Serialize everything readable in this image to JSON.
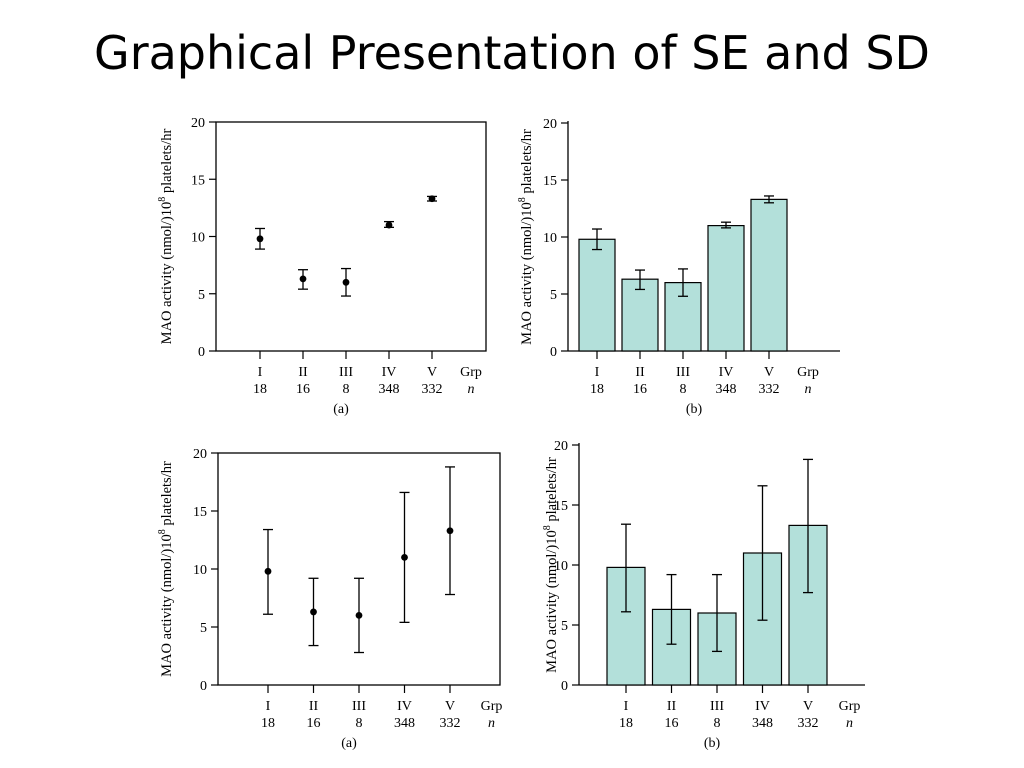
{
  "slide": {
    "title": "Graphical Presentation of SE and SD"
  },
  "chart_data": [
    {
      "type": "scatter",
      "caption": "(a)",
      "ylabel_main": "MAO activity (nmol/)10",
      "ylabel_sup": "8",
      "ylabel_tail": " platelets/hr",
      "categories": [
        "I",
        "II",
        "III",
        "IV",
        "V"
      ],
      "n": [
        "18",
        "16",
        "8",
        "348",
        "332"
      ],
      "grp_label": "Grp",
      "n_label": "n",
      "values": [
        9.8,
        6.3,
        6.0,
        11.0,
        13.3
      ],
      "err_low": [
        8.9,
        5.4,
        4.8,
        10.8,
        13.1
      ],
      "err_high": [
        10.7,
        7.1,
        7.2,
        11.3,
        13.5
      ],
      "ylim": [
        0,
        20
      ],
      "yticks": [
        0,
        5,
        10,
        15,
        20
      ],
      "frame": "box"
    },
    {
      "type": "bar",
      "caption": "(b)",
      "ylabel_main": "MAO activity (nmol/)10",
      "ylabel_sup": "8",
      "ylabel_tail": " platelets/hr",
      "categories": [
        "I",
        "II",
        "III",
        "IV",
        "V"
      ],
      "n": [
        "18",
        "16",
        "8",
        "348",
        "332"
      ],
      "grp_label": "Grp",
      "n_label": "n",
      "values": [
        9.8,
        6.3,
        6.0,
        11.0,
        13.3
      ],
      "err_low": [
        8.9,
        5.4,
        4.8,
        10.8,
        13.0
      ],
      "err_high": [
        10.7,
        7.1,
        7.2,
        11.3,
        13.6
      ],
      "ylim": [
        0,
        20
      ],
      "yticks": [
        0,
        5,
        10,
        15,
        20
      ],
      "bar_color": "#b3e0da",
      "frame": "axes"
    },
    {
      "type": "scatter",
      "caption": "(a)",
      "ylabel_main": "MAO activity (nmol/)10",
      "ylabel_sup": "8",
      "ylabel_tail": " platelets/hr",
      "categories": [
        "I",
        "II",
        "III",
        "IV",
        "V"
      ],
      "n": [
        "18",
        "16",
        "8",
        "348",
        "332"
      ],
      "grp_label": "Grp",
      "n_label": "n",
      "values": [
        9.8,
        6.3,
        6.0,
        11.0,
        13.3
      ],
      "err_low": [
        6.1,
        3.4,
        2.8,
        5.4,
        7.8
      ],
      "err_high": [
        13.4,
        9.2,
        9.2,
        16.6,
        18.8
      ],
      "ylim": [
        0,
        20
      ],
      "yticks": [
        0,
        5,
        10,
        15,
        20
      ],
      "frame": "box"
    },
    {
      "type": "bar",
      "caption": "(b)",
      "ylabel_main": "MAO activity (nmol/)10",
      "ylabel_sup": "8",
      "ylabel_tail": " platelets/hr",
      "categories": [
        "I",
        "II",
        "III",
        "IV",
        "V"
      ],
      "n": [
        "18",
        "16",
        "8",
        "348",
        "332"
      ],
      "grp_label": "Grp",
      "n_label": "n",
      "values": [
        9.8,
        6.3,
        6.0,
        11.0,
        13.3
      ],
      "err_low": [
        6.1,
        3.4,
        2.8,
        5.4,
        7.7
      ],
      "err_high": [
        13.4,
        9.2,
        9.2,
        16.6,
        18.8
      ],
      "ylim": [
        0,
        20
      ],
      "yticks": [
        0,
        5,
        10,
        15,
        20
      ],
      "bar_color": "#b3e0da",
      "frame": "axes"
    }
  ]
}
